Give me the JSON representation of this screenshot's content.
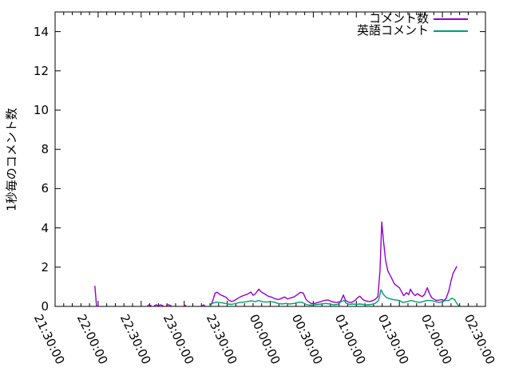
{
  "chart_data": {
    "type": "line",
    "title": "",
    "xlabel": "",
    "ylabel": "1秒毎のコメント数",
    "ylim": [
      0,
      15
    ],
    "y_tick_values": [
      0,
      2,
      4,
      6,
      8,
      10,
      12,
      14
    ],
    "y_tick_labels": [
      "0",
      "2",
      "4",
      "6",
      "8",
      "10",
      "12",
      "14"
    ],
    "x_tick_labels": [
      "21:30:00",
      "22:00:00",
      "22:30:00",
      "23:00:00",
      "23:30:00",
      "00:00:00",
      "00:30:00",
      "01:00:00",
      "01:30:00",
      "02:00:00",
      "02:30:00"
    ],
    "x_axis": {
      "start_label": "21:30:00",
      "end_label": "02:30:00",
      "range_minutes": 300,
      "major_tick_interval_minutes": 30,
      "minor_tick_interval_minutes": 6,
      "tick_label_rotation_deg": 64
    },
    "grid": false,
    "legend_position": "top-right-inside",
    "axis_color": "#000000",
    "x_encoding": "minutes after 21:30:00",
    "series": [
      {
        "name": "コメント数",
        "color": "#9400d3",
        "segments": [
          [
            [
              27.7,
              1.05
            ],
            [
              28.9,
              0.02
            ],
            [
              30,
              0.02
            ]
          ],
          [
            [
              64.5,
              0.02
            ],
            [
              65.3,
              0.08
            ],
            [
              66.4,
              0.05
            ],
            [
              67.3,
              0.02
            ]
          ],
          [
            [
              69,
              0.03
            ],
            [
              70.5,
              0.08
            ],
            [
              72,
              0.04
            ],
            [
              73.5,
              0.08
            ],
            [
              75.5,
              0.03
            ]
          ],
          [
            [
              77.4,
              0.03
            ],
            [
              78.8,
              0.09
            ],
            [
              80.2,
              0.05
            ],
            [
              81.3,
              0.02
            ]
          ],
          [
            [
              89.6,
              0.03
            ],
            [
              90.4,
              0.07
            ],
            [
              91.3,
              0.02
            ]
          ],
          [
            [
              102.4,
              0.02
            ],
            [
              103.5,
              0.08
            ],
            [
              104.6,
              0.02
            ]
          ],
          [
            [
              108.5,
              0.05
            ],
            [
              110,
              0.3
            ],
            [
              111.5,
              0.68
            ],
            [
              113,
              0.72
            ],
            [
              115,
              0.6
            ],
            [
              117.5,
              0.52
            ],
            [
              119.5,
              0.45
            ],
            [
              121,
              0.32
            ],
            [
              123,
              0.25
            ],
            [
              125,
              0.3
            ],
            [
              127.5,
              0.42
            ],
            [
              129.5,
              0.5
            ],
            [
              132,
              0.57
            ],
            [
              134,
              0.62
            ],
            [
              136.5,
              0.73
            ],
            [
              138,
              0.57
            ],
            [
              139.5,
              0.63
            ],
            [
              142,
              0.88
            ],
            [
              144,
              0.72
            ],
            [
              146.5,
              0.62
            ],
            [
              148.5,
              0.52
            ],
            [
              151,
              0.47
            ],
            [
              153,
              0.4
            ],
            [
              155.5,
              0.35
            ],
            [
              157.5,
              0.4
            ],
            [
              160,
              0.48
            ],
            [
              162,
              0.38
            ],
            [
              164,
              0.43
            ],
            [
              166.5,
              0.48
            ],
            [
              169,
              0.6
            ],
            [
              171,
              0.72
            ],
            [
              173,
              0.68
            ],
            [
              175,
              0.35
            ],
            [
              176.5,
              0.25
            ],
            [
              178.5,
              0.15
            ],
            [
              181,
              0.15
            ],
            [
              183,
              0.2
            ],
            [
              185.5,
              0.25
            ],
            [
              187.5,
              0.3
            ],
            [
              190,
              0.33
            ],
            [
              192,
              0.27
            ],
            [
              194,
              0.22
            ],
            [
              196.5,
              0.2
            ],
            [
              199,
              0.25
            ],
            [
              201,
              0.58
            ],
            [
              202.5,
              0.3
            ],
            [
              204.5,
              0.22
            ],
            [
              206.5,
              0.2
            ],
            [
              209,
              0.3
            ],
            [
              211,
              0.45
            ],
            [
              212.5,
              0.52
            ],
            [
              214.5,
              0.35
            ],
            [
              216.5,
              0.28
            ],
            [
              219,
              0.25
            ],
            [
              221,
              0.28
            ],
            [
              223,
              0.35
            ],
            [
              225,
              0.5
            ],
            [
              226.5,
              1.8
            ],
            [
              227.7,
              4.3
            ],
            [
              229,
              3.3
            ],
            [
              230.5,
              2.3
            ],
            [
              232,
              1.8
            ],
            [
              234.5,
              1.45
            ],
            [
              236.5,
              1.15
            ],
            [
              239,
              1.0
            ],
            [
              240,
              0.95
            ],
            [
              241.5,
              0.75
            ],
            [
              243,
              0.55
            ],
            [
              245,
              0.7
            ],
            [
              246.5,
              0.6
            ],
            [
              247.7,
              0.88
            ],
            [
              249.5,
              0.65
            ],
            [
              251,
              0.55
            ],
            [
              252.5,
              0.65
            ],
            [
              254.5,
              0.55
            ],
            [
              256,
              0.5
            ],
            [
              257.5,
              0.6
            ],
            [
              259.5,
              0.95
            ],
            [
              261,
              0.65
            ],
            [
              262.5,
              0.45
            ],
            [
              264.5,
              0.35
            ],
            [
              266,
              0.3
            ],
            [
              268,
              0.32
            ],
            [
              269.5,
              0.35
            ],
            [
              271,
              0.3
            ],
            [
              272.5,
              0.4
            ],
            [
              274.5,
              0.8
            ],
            [
              276,
              1.3
            ],
            [
              277.5,
              1.7
            ],
            [
              279,
              1.9
            ],
            [
              280,
              2.05
            ]
          ]
        ]
      },
      {
        "name": "英語コメント",
        "color": "#009e73",
        "segments": [
          [
            [
              108,
              0.02
            ],
            [
              109.5,
              0.15
            ],
            [
              112,
              0.22
            ],
            [
              114.5,
              0.2
            ],
            [
              117.5,
              0.17
            ],
            [
              120,
              0.12
            ],
            [
              123,
              0.1
            ],
            [
              126,
              0.15
            ],
            [
              128.5,
              0.2
            ],
            [
              131.5,
              0.22
            ],
            [
              134,
              0.25
            ],
            [
              137,
              0.28
            ],
            [
              139.5,
              0.25
            ],
            [
              142,
              0.3
            ],
            [
              144,
              0.25
            ],
            [
              147,
              0.22
            ],
            [
              150,
              0.25
            ],
            [
              152.5,
              0.22
            ],
            [
              155.5,
              0.15
            ],
            [
              158,
              0.12
            ],
            [
              161,
              0.15
            ],
            [
              163.5,
              0.12
            ],
            [
              166.5,
              0.15
            ],
            [
              169,
              0.2
            ],
            [
              172,
              0.22
            ],
            [
              175,
              0.1
            ],
            [
              177.5,
              0.06
            ],
            [
              180.5,
              0.08
            ],
            [
              183,
              0.1
            ],
            [
              186,
              0.12
            ],
            [
              188.5,
              0.15
            ],
            [
              191.5,
              0.12
            ],
            [
              194,
              0.08
            ],
            [
              197,
              0.1
            ],
            [
              199.5,
              0.25
            ],
            [
              201.5,
              0.3
            ],
            [
              203,
              0.15
            ],
            [
              205.5,
              0.1
            ],
            [
              207.5,
              0.12
            ],
            [
              210,
              0.1
            ],
            [
              212,
              0.12
            ],
            [
              215,
              0.1
            ],
            [
              217.5,
              0.08
            ],
            [
              220.5,
              0.1
            ],
            [
              223,
              0.15
            ],
            [
              225.5,
              0.3
            ],
            [
              227.2,
              0.85
            ],
            [
              229,
              0.6
            ],
            [
              231,
              0.45
            ],
            [
              233,
              0.4
            ],
            [
              235.5,
              0.35
            ],
            [
              238,
              0.32
            ],
            [
              240,
              0.3
            ],
            [
              242.5,
              0.2
            ],
            [
              245.5,
              0.25
            ],
            [
              248.3,
              0.3
            ],
            [
              251,
              0.25
            ],
            [
              253.8,
              0.2
            ],
            [
              256.5,
              0.25
            ],
            [
              259.5,
              0.3
            ],
            [
              262,
              0.3
            ],
            [
              265,
              0.25
            ],
            [
              267.5,
              0.2
            ],
            [
              270.5,
              0.25
            ],
            [
              272,
              0.3
            ],
            [
              274.5,
              0.3
            ],
            [
              276.5,
              0.42
            ],
            [
              278.5,
              0.35
            ],
            [
              280,
              0.15
            ],
            [
              281.5,
              0.02
            ]
          ]
        ]
      }
    ]
  }
}
